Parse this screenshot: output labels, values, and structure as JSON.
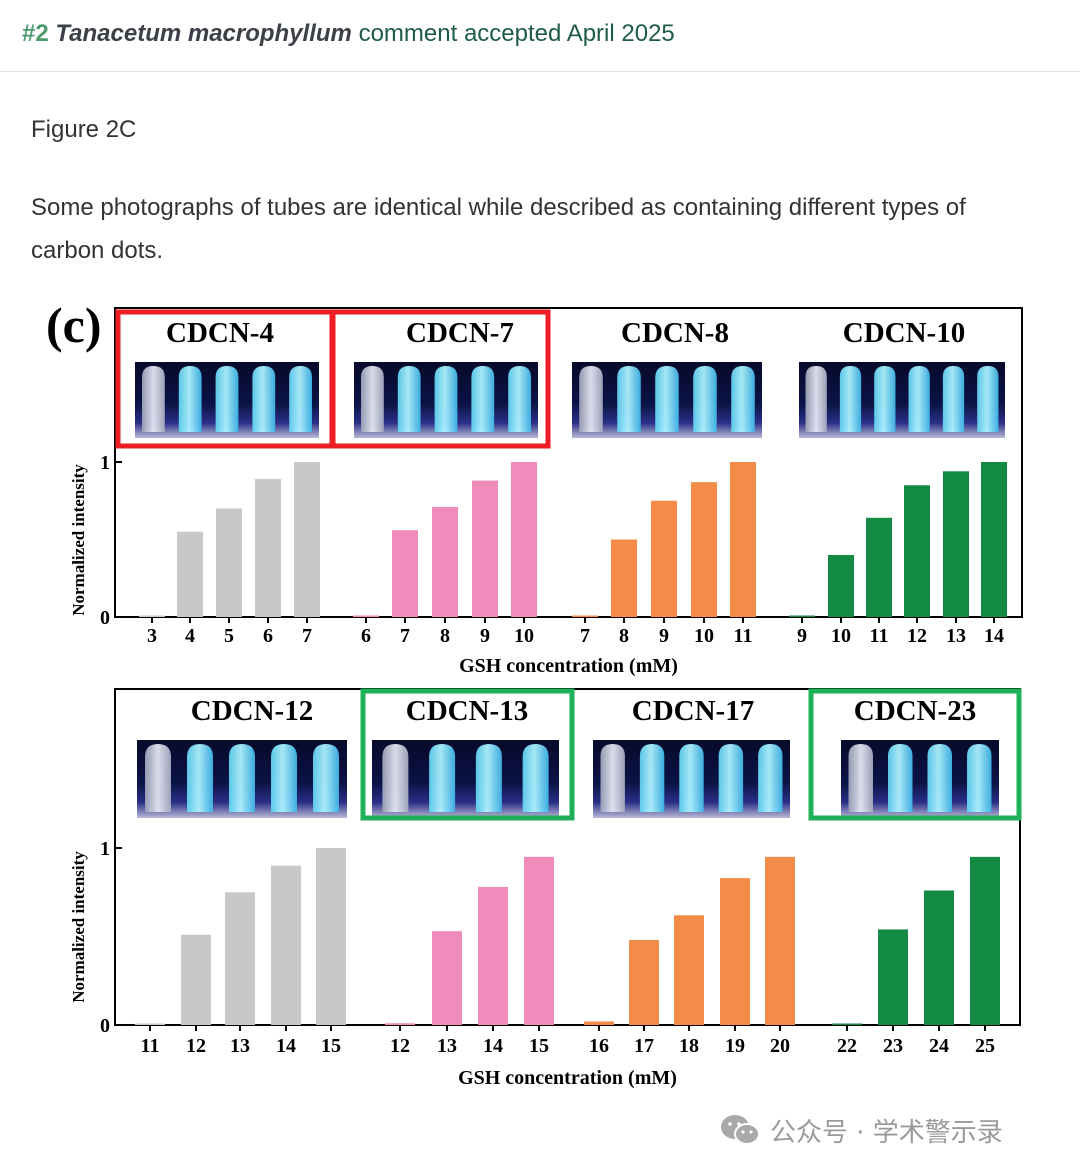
{
  "header": {
    "number": "#2",
    "species": "Tanacetum macrophyllum",
    "status": "comment accepted April 2025"
  },
  "content": {
    "figure_label": "Figure 2C",
    "description": "Some photographs of tubes are identical while described as containing different types of carbon dots."
  },
  "figure": {
    "panel_label": "(c)"
  },
  "colors": {
    "gray": "#c8c8c8",
    "pink": "#f08cbc",
    "orange": "#f28c48",
    "green": "#128a44",
    "highlight_red": "#ee1c24",
    "highlight_green": "#1fb15a"
  },
  "chart_data": [
    {
      "type": "bar",
      "xlabel": "GSH concentration (mM)",
      "ylabel": "Normalized intensity",
      "ylim": [
        0,
        1
      ],
      "yticks": [
        "0",
        "1"
      ],
      "groups": [
        {
          "name": "CDCN-4",
          "color": "gray",
          "x": [
            "3",
            "4",
            "5",
            "6",
            "7"
          ],
          "values": [
            0.01,
            0.55,
            0.7,
            0.89,
            1.0
          ],
          "highlight": "red"
        },
        {
          "name": "CDCN-7",
          "color": "pink",
          "x": [
            "6",
            "7",
            "8",
            "9",
            "10"
          ],
          "values": [
            0.01,
            0.56,
            0.71,
            0.88,
            1.0
          ],
          "highlight": "red"
        },
        {
          "name": "CDCN-8",
          "color": "orange",
          "x": [
            "7",
            "8",
            "9",
            "10",
            "11"
          ],
          "values": [
            0.0,
            0.5,
            0.75,
            0.87,
            1.0
          ],
          "highlight": ""
        },
        {
          "name": "CDCN-10",
          "color": "green",
          "x": [
            "9",
            "10",
            "11",
            "12",
            "13",
            "14"
          ],
          "values": [
            0.0,
            0.4,
            0.64,
            0.85,
            0.94,
            1.0
          ],
          "highlight": ""
        }
      ]
    },
    {
      "type": "bar",
      "xlabel": "GSH concentration (mM)",
      "ylabel": "Normalized intensity",
      "ylim": [
        0,
        1
      ],
      "yticks": [
        "0",
        "1"
      ],
      "groups": [
        {
          "name": "CDCN-12",
          "color": "gray",
          "x": [
            "11",
            "12",
            "13",
            "14",
            "15"
          ],
          "values": [
            0.0,
            0.51,
            0.75,
            0.9,
            1.0
          ],
          "highlight": ""
        },
        {
          "name": "CDCN-13",
          "color": "pink",
          "x": [
            "12",
            "13",
            "14",
            "15"
          ],
          "values": [
            0.01,
            0.53,
            0.78,
            0.95
          ],
          "highlight": "green"
        },
        {
          "name": "CDCN-17",
          "color": "orange",
          "x": [
            "16",
            "17",
            "18",
            "19",
            "20"
          ],
          "values": [
            0.02,
            0.48,
            0.62,
            0.83,
            0.95
          ],
          "highlight": ""
        },
        {
          "name": "CDCN-23",
          "color": "green",
          "x": [
            "22",
            "23",
            "24",
            "25"
          ],
          "values": [
            0.0,
            0.54,
            0.76,
            0.95
          ],
          "highlight": "green"
        }
      ]
    }
  ],
  "watermark": {
    "text": "公众号 · 学术警示录",
    "icon": "wechat-icon"
  }
}
